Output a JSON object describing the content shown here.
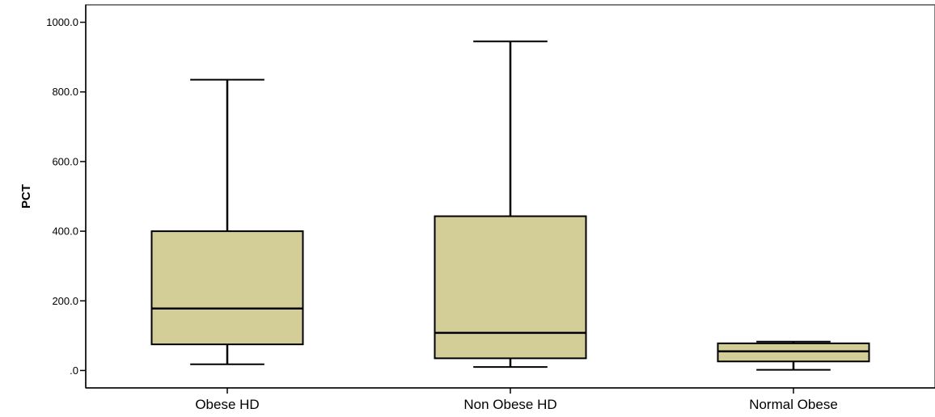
{
  "chart_data": {
    "type": "boxplot",
    "title": "",
    "xlabel": "",
    "ylabel": "PCT",
    "ylim": [
      -50,
      1050
    ],
    "grid": false,
    "legend": "none",
    "yticks": [
      {
        "value": 0,
        "label": ".0"
      },
      {
        "value": 200,
        "label": "200.0"
      },
      {
        "value": 400,
        "label": "400.0"
      },
      {
        "value": 600,
        "label": "600.0"
      },
      {
        "value": 800,
        "label": "800.0"
      },
      {
        "value": 1000,
        "label": "1000.0"
      }
    ],
    "categories": [
      "Obese HD",
      "Non Obese HD",
      "Normal Obese"
    ],
    "boxes": [
      {
        "category": "Obese HD",
        "whisker_low": 18,
        "q1": 75,
        "median": 178,
        "q3": 400,
        "whisker_high": 835
      },
      {
        "category": "Non Obese HD",
        "whisker_low": 10,
        "q1": 35,
        "median": 108,
        "q3": 443,
        "whisker_high": 945
      },
      {
        "category": "Normal Obese",
        "whisker_low": 2,
        "q1": 26,
        "median": 55,
        "q3": 78,
        "whisker_high": 83
      }
    ],
    "colors": {
      "box_fill": "#d3cd98",
      "stroke": "#000000",
      "axis": "#000000",
      "frame": "#555555"
    }
  }
}
